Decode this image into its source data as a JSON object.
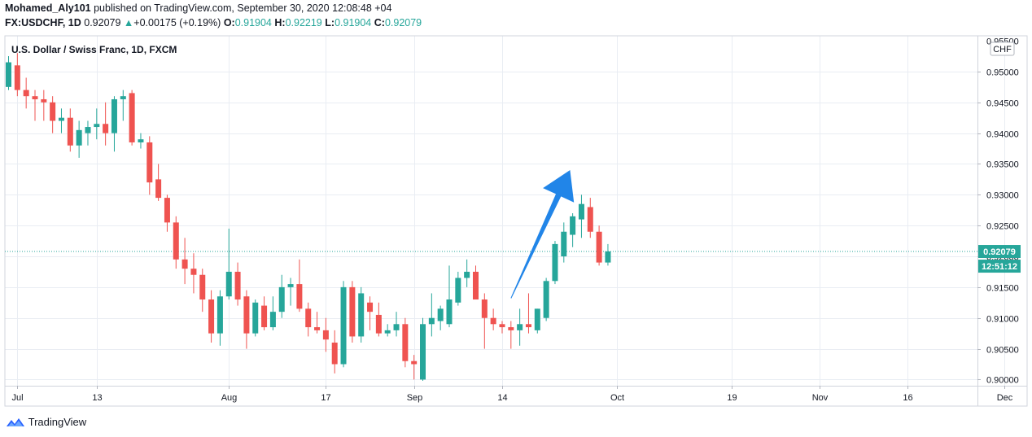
{
  "header": {
    "author": "Mohamed_Aly101",
    "published": "published on TradingView.com, September 30, 2020 12:08:48 +04",
    "symbol": "FX:USDCHF, 1D",
    "last": "0.92079",
    "change_arrow": "▲",
    "change": "+0.00175 (+0.19%)",
    "o_label": "O:",
    "o_value": "0.91904",
    "h_label": "H:",
    "h_value": "0.92219",
    "l_label": "L:",
    "l_value": "0.91904",
    "c_label": "C:",
    "c_value": "0.92079"
  },
  "price_badge": "0.92079",
  "countdown_badge": "12:51:12",
  "currency_badge": "CHF",
  "footer": {
    "brand": "TradingView",
    "logo_icon": "tradingview-logo-icon"
  },
  "colors": {
    "up": "#26a69a",
    "down": "#ef5350",
    "arrow": "#2185e8",
    "grid": "#e9edf3",
    "last_price_line": "#26a69a"
  },
  "chart_data": {
    "type": "candlestick",
    "title": "U.S. Dollar / Swiss Franc, 1D, FXCM",
    "ylim": [
      0.899,
      0.9558
    ],
    "y_ticks": [
      "0.90000",
      "0.90500",
      "0.91000",
      "0.91500",
      "0.92000",
      "0.92500",
      "0.93000",
      "0.93500",
      "0.94000",
      "0.94500",
      "0.95000"
    ],
    "y_top_tick_partial": "0.95500",
    "x_ticks": [
      {
        "label": "Jul",
        "index": 1
      },
      {
        "label": "13",
        "index": 10
      },
      {
        "label": "Aug",
        "index": 25
      },
      {
        "label": "17",
        "index": 36
      },
      {
        "label": "Sep",
        "index": 46
      },
      {
        "label": "14",
        "index": 56
      },
      {
        "label": "Oct",
        "index": 69
      },
      {
        "label": "19",
        "index": 82
      },
      {
        "label": "Nov",
        "index": 92
      },
      {
        "label": "16",
        "index": 102
      },
      {
        "label": "Dec",
        "index": 113
      }
    ],
    "last_price": 0.92079,
    "grid": true,
    "candles": [
      [
        0.9475,
        0.9525,
        0.947,
        0.9515
      ],
      [
        0.951,
        0.953,
        0.946,
        0.947
      ],
      [
        0.947,
        0.949,
        0.944,
        0.946
      ],
      [
        0.946,
        0.947,
        0.942,
        0.9455
      ],
      [
        0.9455,
        0.947,
        0.942,
        0.945
      ],
      [
        0.945,
        0.946,
        0.94,
        0.942
      ],
      [
        0.942,
        0.944,
        0.94,
        0.9425
      ],
      [
        0.9425,
        0.944,
        0.937,
        0.938
      ],
      [
        0.938,
        0.942,
        0.936,
        0.9405
      ],
      [
        0.94,
        0.942,
        0.938,
        0.941
      ],
      [
        0.941,
        0.944,
        0.939,
        0.9415
      ],
      [
        0.9415,
        0.945,
        0.938,
        0.94
      ],
      [
        0.94,
        0.946,
        0.937,
        0.9455
      ],
      [
        0.9455,
        0.947,
        0.942,
        0.946
      ],
      [
        0.9465,
        0.947,
        0.938,
        0.9385
      ],
      [
        0.9385,
        0.94,
        0.9375,
        0.939
      ],
      [
        0.9385,
        0.9395,
        0.93,
        0.932
      ],
      [
        0.9325,
        0.935,
        0.929,
        0.9295
      ],
      [
        0.9295,
        0.93,
        0.924,
        0.9255
      ],
      [
        0.9255,
        0.9265,
        0.918,
        0.9195
      ],
      [
        0.9195,
        0.923,
        0.9155,
        0.918
      ],
      [
        0.918,
        0.9205,
        0.914,
        0.917
      ],
      [
        0.917,
        0.918,
        0.911,
        0.913
      ],
      [
        0.913,
        0.9145,
        0.906,
        0.9075
      ],
      [
        0.9075,
        0.9145,
        0.9055,
        0.9135
      ],
      [
        0.9135,
        0.9245,
        0.913,
        0.9175
      ],
      [
        0.9175,
        0.919,
        0.912,
        0.913
      ],
      [
        0.9135,
        0.9145,
        0.905,
        0.9075
      ],
      [
        0.9075,
        0.913,
        0.907,
        0.9125
      ],
      [
        0.912,
        0.9135,
        0.908,
        0.9085
      ],
      [
        0.9085,
        0.9135,
        0.908,
        0.911
      ],
      [
        0.911,
        0.917,
        0.91,
        0.915
      ],
      [
        0.915,
        0.9165,
        0.912,
        0.9155
      ],
      [
        0.9155,
        0.9195,
        0.911,
        0.9115
      ],
      [
        0.9115,
        0.9125,
        0.907,
        0.9085
      ],
      [
        0.9085,
        0.911,
        0.9075,
        0.908
      ],
      [
        0.908,
        0.91,
        0.9045,
        0.9065
      ],
      [
        0.906,
        0.908,
        0.901,
        0.9025
      ],
      [
        0.9025,
        0.916,
        0.902,
        0.915
      ],
      [
        0.915,
        0.916,
        0.906,
        0.907
      ],
      [
        0.907,
        0.915,
        0.906,
        0.914
      ],
      [
        0.9125,
        0.9135,
        0.908,
        0.911
      ],
      [
        0.9105,
        0.9125,
        0.907,
        0.9075
      ],
      [
        0.9075,
        0.909,
        0.907,
        0.908
      ],
      [
        0.908,
        0.911,
        0.907,
        0.909
      ],
      [
        0.909,
        0.91,
        0.902,
        0.903
      ],
      [
        0.903,
        0.904,
        0.9,
        0.9025
      ],
      [
        0.9,
        0.91,
        0.8998,
        0.909
      ],
      [
        0.909,
        0.914,
        0.907,
        0.91
      ],
      [
        0.9095,
        0.912,
        0.908,
        0.9115
      ],
      [
        0.909,
        0.9185,
        0.9085,
        0.913
      ],
      [
        0.9125,
        0.9175,
        0.912,
        0.9165
      ],
      [
        0.9165,
        0.9195,
        0.915,
        0.9175
      ],
      [
        0.9175,
        0.9185,
        0.913,
        0.913
      ],
      [
        0.913,
        0.914,
        0.905,
        0.91
      ],
      [
        0.91,
        0.9115,
        0.908,
        0.909
      ],
      [
        0.909,
        0.9095,
        0.9075,
        0.9085
      ],
      [
        0.9085,
        0.9095,
        0.905,
        0.908
      ],
      [
        0.908,
        0.9115,
        0.9055,
        0.909
      ],
      [
        0.909,
        0.914,
        0.9075,
        0.9085
      ],
      [
        0.908,
        0.9115,
        0.9075,
        0.9115
      ],
      [
        0.91,
        0.9165,
        0.9095,
        0.916
      ],
      [
        0.916,
        0.9225,
        0.9155,
        0.922
      ],
      [
        0.92,
        0.9255,
        0.919,
        0.924
      ],
      [
        0.9235,
        0.927,
        0.9215,
        0.9265
      ],
      [
        0.926,
        0.93,
        0.923,
        0.9285
      ],
      [
        0.928,
        0.9295,
        0.923,
        0.924
      ],
      [
        0.924,
        0.925,
        0.9185,
        0.919
      ],
      [
        0.919,
        0.922,
        0.9185,
        0.9208
      ]
    ],
    "annotation": {
      "type": "arrow",
      "color": "#2185e8",
      "from_index": 57,
      "from_price": 0.9132,
      "to_index": 63.7,
      "to_price": 0.934
    }
  }
}
